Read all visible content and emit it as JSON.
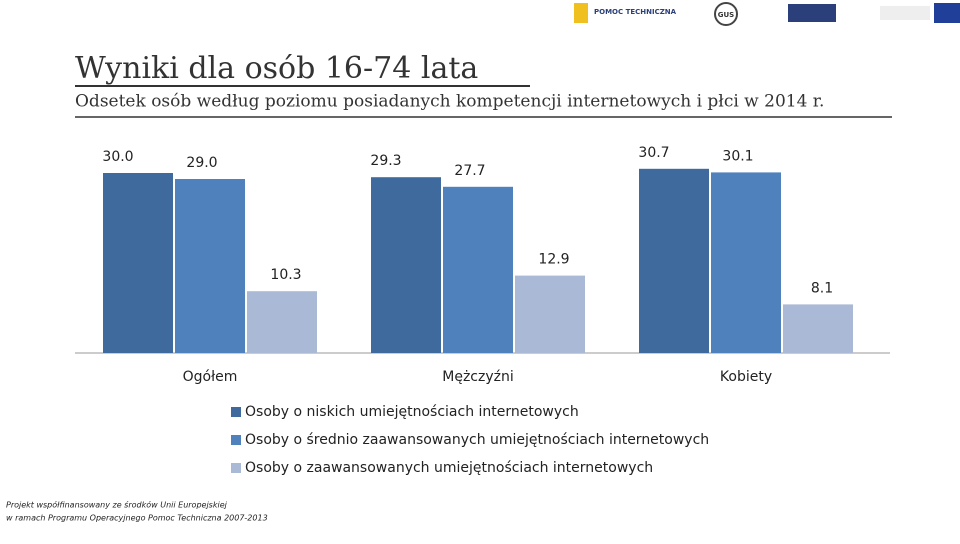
{
  "logos": [
    "POMOC TECHNICZNA",
    "GUS"
  ],
  "footer": [
    "Projekt współfinansowany ze środków Unii Europejskiej",
    "w ramach Programu Operacyjnego Pomoc Techniczna 2007-2013"
  ],
  "chart_data": {
    "type": "bar",
    "title": "Wyniki dla osób 16-74 lata",
    "subtitle": "Odsetek osób według poziomu posiadanych kompetencji internetowych i płci w 2014 r.",
    "categories": [
      "Ogółem",
      "Mężczyźni",
      "Kobiety"
    ],
    "series": [
      {
        "name": "Osoby o niskich umiejętnościach internetowych",
        "color": "#3f6a9e",
        "values": [
          30.0,
          29.3,
          30.7
        ],
        "value_labels": [
          "30.0",
          "29.3",
          "30.7"
        ]
      },
      {
        "name": "Osoby o średnio zaawansowanych umiejętnościach internetowych",
        "color": "#4f81bd",
        "values": [
          29.0,
          27.7,
          30.1
        ],
        "value_labels": [
          "29.0",
          "27.7",
          "30.1"
        ]
      },
      {
        "name": "Osoby o zaawansowanych umiejętnościach internetowych",
        "color": "#a9b9d6",
        "values": [
          10.3,
          12.9,
          8.1
        ],
        "value_labels": [
          "10.3",
          "12.9",
          "8.1"
        ]
      }
    ]
  }
}
